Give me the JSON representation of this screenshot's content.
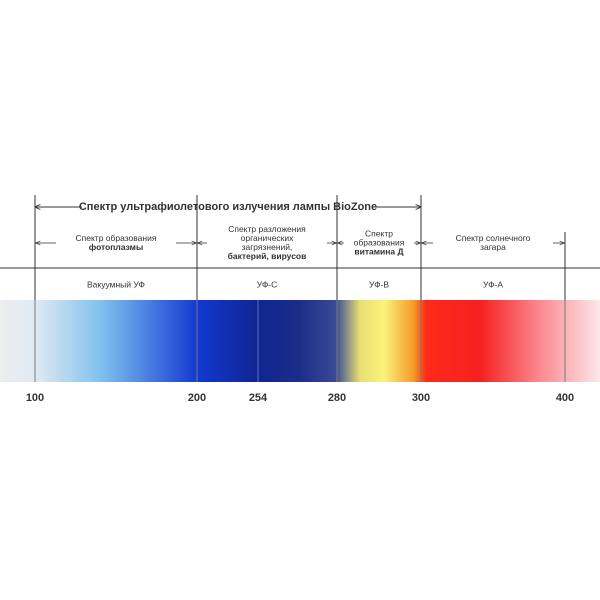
{
  "header": {
    "title": "Спектр ультрафиолетового излучения лампы BioZone"
  },
  "ranges": [
    {
      "lines": [
        "Спектр образования"
      ],
      "bold": "фотоплазмы"
    },
    {
      "lines": [
        "Спектр разложения",
        "органических",
        "загрязнений,"
      ],
      "bold": "бактерий, вирусов"
    },
    {
      "lines": [
        "Спектр",
        "образования"
      ],
      "bold": "витамина Д"
    },
    {
      "lines": [
        "Спектр солнечного",
        "загара"
      ]
    }
  ],
  "bands": [
    "Вакуумный УФ",
    "УФ-С",
    "УФ-В",
    "УФ-А"
  ],
  "ticks": [
    100,
    200,
    254,
    280,
    300,
    400
  ]
}
